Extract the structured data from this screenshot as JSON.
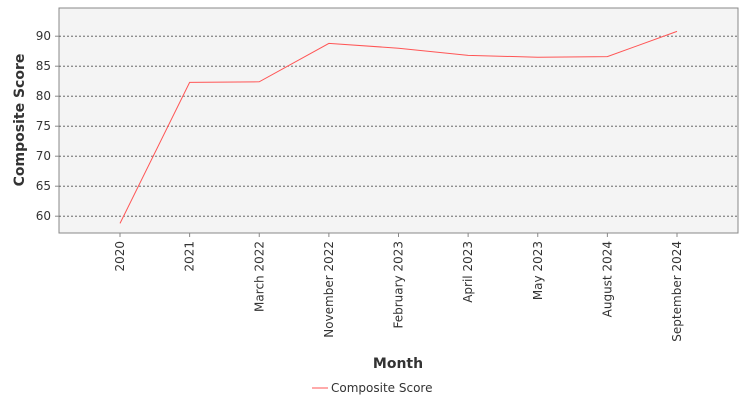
{
  "chart_data": {
    "type": "line",
    "x_label": "Month",
    "y_label": "Composite Score",
    "categories": [
      "2020",
      "2021",
      "March 2022",
      "November 2022",
      "February 2023",
      "April 2023",
      "May 2023",
      "August 2024",
      "September 2024"
    ],
    "series": [
      {
        "name": "Composite Score",
        "color": "#ff5555",
        "values": [
          58.8,
          82.3,
          82.4,
          88.8,
          88.0,
          86.8,
          86.5,
          86.6,
          90.8
        ]
      }
    ],
    "ylim": [
      57.2,
      94.7
    ],
    "yticks": [
      60,
      65,
      70,
      75,
      80,
      85,
      90
    ],
    "grid": true
  }
}
